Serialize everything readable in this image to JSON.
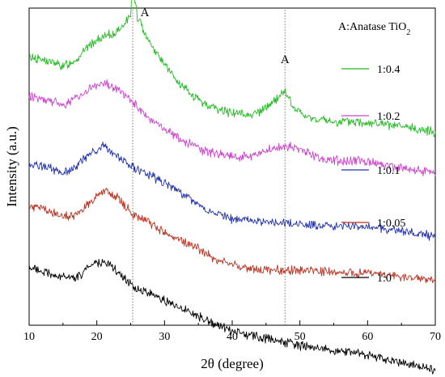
{
  "chart_data": {
    "type": "line",
    "title": "",
    "xlabel": "2θ  (degree)",
    "ylabel": "Intensity (a.u.)",
    "xlim": [
      10,
      70
    ],
    "x_ticks": [
      10,
      20,
      30,
      40,
      50,
      60,
      70
    ],
    "y_ticks_shown": false,
    "grid": false,
    "legend_position": "right, each entry beside its curve",
    "legend_header": {
      "prefix": "A:Anatase TiO",
      "subscript": "2"
    },
    "annotations": [
      {
        "text": "A",
        "x": 25.3
      },
      {
        "text": "A",
        "x": 47.8
      }
    ],
    "reference_lines_x": [
      25.3,
      47.8
    ],
    "series": [
      {
        "name": "1:0.4",
        "color": "#22bb22",
        "points": [
          [
            10,
            0.9
          ],
          [
            13,
            0.88
          ],
          [
            15,
            0.86
          ],
          [
            17,
            0.89
          ],
          [
            19,
            0.95
          ],
          [
            21,
            0.98
          ],
          [
            23,
            1.0
          ],
          [
            25,
            1.07
          ],
          [
            25.3,
            1.18
          ],
          [
            26,
            1.06
          ],
          [
            28,
            0.95
          ],
          [
            30,
            0.87
          ],
          [
            32,
            0.79
          ],
          [
            35,
            0.72
          ],
          [
            38,
            0.68
          ],
          [
            40,
            0.67
          ],
          [
            42,
            0.66
          ],
          [
            44,
            0.67
          ],
          [
            46,
            0.71
          ],
          [
            47.8,
            0.76
          ],
          [
            49,
            0.69
          ],
          [
            51,
            0.65
          ],
          [
            55,
            0.63
          ],
          [
            60,
            0.63
          ],
          [
            65,
            0.61
          ],
          [
            70,
            0.59
          ]
        ]
      },
      {
        "name": "1:0.2",
        "color": "#cc44cc",
        "points": [
          [
            10,
            0.74
          ],
          [
            13,
            0.72
          ],
          [
            15,
            0.7
          ],
          [
            17,
            0.73
          ],
          [
            19,
            0.77
          ],
          [
            21,
            0.79
          ],
          [
            23,
            0.77
          ],
          [
            25,
            0.72
          ],
          [
            27,
            0.66
          ],
          [
            30,
            0.6
          ],
          [
            33,
            0.55
          ],
          [
            36,
            0.51
          ],
          [
            40,
            0.49
          ],
          [
            43,
            0.49
          ],
          [
            46,
            0.52
          ],
          [
            48,
            0.53
          ],
          [
            50,
            0.52
          ],
          [
            53,
            0.48
          ],
          [
            56,
            0.47
          ],
          [
            60,
            0.47
          ],
          [
            65,
            0.44
          ],
          [
            70,
            0.42
          ]
        ]
      },
      {
        "name": "1:0.1",
        "color": "#2233aa",
        "points": [
          [
            10,
            0.46
          ],
          [
            13,
            0.44
          ],
          [
            15,
            0.42
          ],
          [
            17,
            0.45
          ],
          [
            19,
            0.5
          ],
          [
            21,
            0.53
          ],
          [
            23,
            0.49
          ],
          [
            25,
            0.45
          ],
          [
            27,
            0.42
          ],
          [
            30,
            0.38
          ],
          [
            33,
            0.33
          ],
          [
            36,
            0.27
          ],
          [
            40,
            0.23
          ],
          [
            45,
            0.22
          ],
          [
            50,
            0.21
          ],
          [
            55,
            0.2
          ],
          [
            60,
            0.2
          ],
          [
            65,
            0.18
          ],
          [
            70,
            0.16
          ]
        ]
      },
      {
        "name": "1:0.05",
        "color": "#bb3322",
        "points": [
          [
            10,
            0.28
          ],
          [
            12,
            0.27
          ],
          [
            15,
            0.24
          ],
          [
            17,
            0.25
          ],
          [
            19,
            0.3
          ],
          [
            21,
            0.35
          ],
          [
            23,
            0.32
          ],
          [
            25,
            0.26
          ],
          [
            28,
            0.21
          ],
          [
            31,
            0.16
          ],
          [
            35,
            0.11
          ],
          [
            38,
            0.06
          ],
          [
            42,
            0.03
          ],
          [
            45,
            0.02
          ],
          [
            50,
            0.02
          ],
          [
            55,
            0.01
          ],
          [
            60,
            0.01
          ],
          [
            65,
            -0.01
          ],
          [
            70,
            -0.02
          ]
        ]
      },
      {
        "name": "1:0",
        "color": "#000000",
        "points": [
          [
            10,
            0.03
          ],
          [
            12,
            0.01
          ],
          [
            15,
            -0.01
          ],
          [
            17,
            -0.01
          ],
          [
            19,
            0.03
          ],
          [
            21,
            0.06
          ],
          [
            23,
            0.02
          ],
          [
            25,
            -0.04
          ],
          [
            28,
            -0.08
          ],
          [
            31,
            -0.12
          ],
          [
            35,
            -0.17
          ],
          [
            38,
            -0.21
          ],
          [
            41,
            -0.24
          ],
          [
            45,
            -0.26
          ],
          [
            50,
            -0.29
          ],
          [
            55,
            -0.31
          ],
          [
            60,
            -0.33
          ],
          [
            65,
            -0.36
          ],
          [
            70,
            -0.39
          ]
        ]
      }
    ]
  }
}
